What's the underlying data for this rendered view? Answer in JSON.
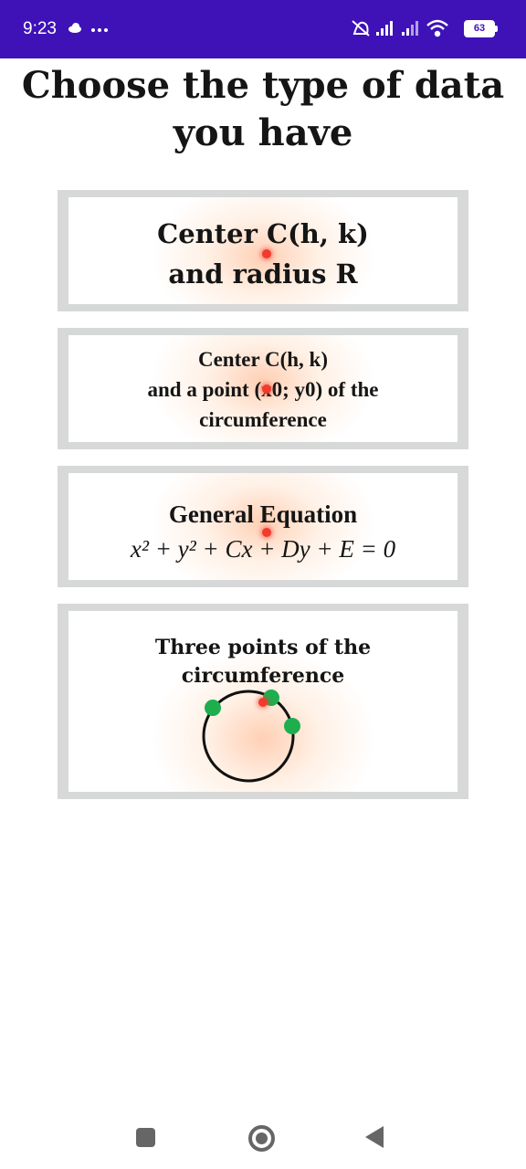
{
  "status_bar": {
    "time": "9:23",
    "left_icons": [
      "cloud-icon",
      "more-dots-icon"
    ],
    "right_icons": [
      "muted-icon",
      "signal-icon",
      "signal-icon",
      "wifi-icon"
    ],
    "battery": "63",
    "color": "#3f12b8"
  },
  "title": {
    "line1": "Choose the type of data",
    "line2": "you have"
  },
  "options": [
    {
      "line1": "Center C(h, k)",
      "line2": "and radius R"
    },
    {
      "line1": "Center C(h, k)",
      "line2": "and a point (x0; y0) of the",
      "line3": "circumference"
    },
    {
      "line1": "General Equation",
      "equation": "x² + y² + Cx + Dy + E = 0"
    },
    {
      "line1": "Three points of the",
      "line2": "circumference"
    }
  ],
  "colors": {
    "card_border": "#d7d8d8",
    "touch_point": "#f13a2d",
    "circle_points": "#1fae4e"
  },
  "nav_bar": {
    "icons": [
      "recents-icon",
      "home-icon",
      "back-icon"
    ]
  }
}
